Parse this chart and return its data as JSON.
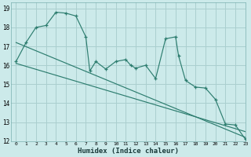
{
  "xlabel": "Humidex (Indice chaleur)",
  "bg_color": "#cceaea",
  "grid_color": "#aacfcf",
  "line_color": "#2d7d6f",
  "xmin": -0.5,
  "xmax": 23,
  "ymin": 12,
  "ymax": 19.3,
  "curve_x": [
    0,
    1,
    2,
    3,
    4,
    5,
    6,
    7,
    7.4,
    8,
    9,
    10,
    11,
    11.5,
    12,
    13,
    14,
    15,
    16,
    16.3,
    17,
    18,
    19,
    20,
    21,
    22,
    23
  ],
  "curve_y": [
    16.2,
    17.2,
    18.0,
    18.1,
    18.8,
    18.75,
    18.6,
    17.5,
    15.7,
    16.2,
    15.8,
    16.2,
    16.3,
    16.0,
    15.85,
    16.0,
    15.3,
    17.4,
    17.5,
    16.5,
    15.2,
    14.85,
    14.8,
    14.2,
    12.9,
    12.85,
    12.1
  ],
  "line1_x": [
    0,
    23
  ],
  "line1_y": [
    17.2,
    12.2
  ],
  "line2_x": [
    0,
    23
  ],
  "line2_y": [
    16.1,
    12.5
  ],
  "yticks": [
    12,
    13,
    14,
    15,
    16,
    17,
    18,
    19
  ],
  "xticks": [
    0,
    1,
    2,
    3,
    4,
    5,
    6,
    7,
    8,
    9,
    10,
    11,
    12,
    13,
    14,
    15,
    16,
    17,
    18,
    19,
    20,
    21,
    22,
    23
  ]
}
